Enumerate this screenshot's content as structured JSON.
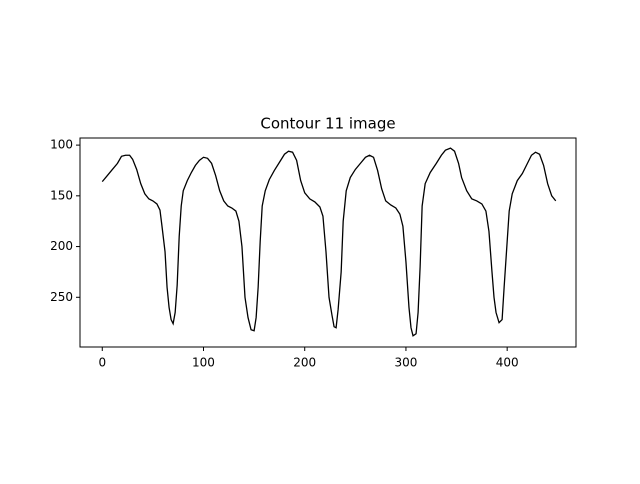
{
  "chart_data": {
    "type": "line",
    "title": "Contour 11 image",
    "color": "#000000",
    "x": [
      0,
      5,
      10,
      15,
      19,
      23,
      27,
      30,
      34,
      38,
      42,
      46,
      50,
      54,
      57,
      59,
      62,
      64,
      66,
      68,
      70,
      72,
      74,
      76,
      78,
      80,
      84,
      88,
      92,
      96,
      100,
      104,
      108,
      112,
      116,
      120,
      124,
      128,
      132,
      135,
      138,
      141,
      144,
      147,
      150,
      152,
      154,
      156,
      158,
      161,
      165,
      170,
      175,
      180,
      184,
      188,
      192,
      196,
      200,
      205,
      210,
      215,
      218,
      221,
      224,
      227,
      229,
      231,
      233,
      236,
      238,
      241,
      245,
      250,
      255,
      260,
      264,
      268,
      272,
      276,
      280,
      285,
      290,
      294,
      297,
      300,
      303,
      305,
      307,
      310,
      312,
      314,
      316,
      319,
      324,
      330,
      335,
      339,
      344,
      348,
      352,
      355,
      360,
      365,
      370,
      375,
      379,
      382,
      385,
      387,
      389,
      392,
      395,
      397,
      400,
      402,
      405,
      410,
      415,
      420,
      424,
      428,
      432,
      436,
      440,
      444,
      448
    ],
    "values": [
      136,
      130,
      124,
      118,
      111,
      110,
      110,
      114,
      124,
      138,
      148,
      153,
      155,
      158,
      164,
      180,
      205,
      240,
      260,
      272,
      276,
      265,
      238,
      190,
      160,
      145,
      135,
      127,
      120,
      115,
      112,
      113,
      118,
      130,
      145,
      155,
      160,
      162,
      165,
      175,
      200,
      250,
      270,
      282,
      283,
      270,
      240,
      195,
      160,
      145,
      134,
      125,
      117,
      109,
      106,
      107,
      115,
      135,
      147,
      153,
      156,
      161,
      170,
      205,
      250,
      268,
      279,
      280,
      262,
      225,
      175,
      145,
      132,
      124,
      118,
      112,
      110,
      112,
      125,
      143,
      155,
      159,
      162,
      168,
      180,
      215,
      260,
      280,
      288,
      286,
      265,
      220,
      160,
      138,
      127,
      118,
      110,
      105,
      103,
      106,
      118,
      132,
      145,
      153,
      155,
      158,
      165,
      185,
      225,
      250,
      265,
      275,
      272,
      240,
      195,
      165,
      148,
      135,
      128,
      118,
      110,
      107,
      109,
      120,
      138,
      150,
      155
    ],
    "xlim": [
      -22,
      468
    ],
    "ylim": [
      299,
      93
    ],
    "xticks": [
      0,
      100,
      200,
      300,
      400
    ],
    "yticks": [
      100,
      150,
      200,
      250
    ]
  }
}
